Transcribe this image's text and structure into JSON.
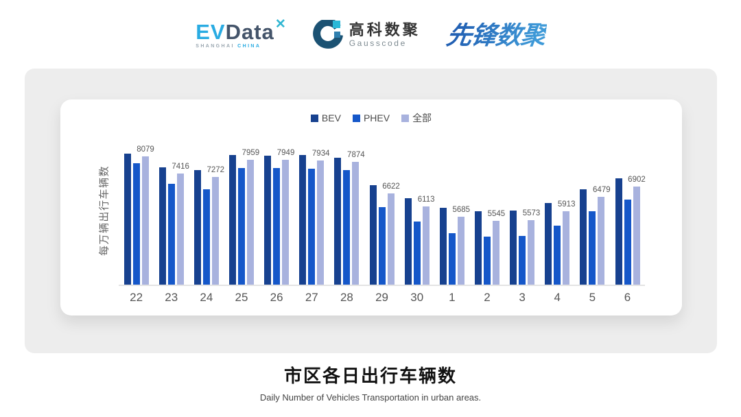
{
  "header": {
    "logo_evdata": {
      "ev": "EV",
      "data": "Data",
      "mark": "✕",
      "sub_grey": "SHANGHAI",
      "sub_blue": "CHINA"
    },
    "logo_gausscode": {
      "cn": "高科数聚",
      "en": "Gausscode"
    },
    "logo_pioneer": {
      "text": "先锋数聚"
    }
  },
  "chart_data": {
    "type": "bar",
    "title": "市区各日出行车辆数",
    "subtitle": "Daily Number of Vehicles Transportation in urban areas.",
    "ylabel": "每万辆出行车辆数",
    "categories": [
      "22",
      "23",
      "24",
      "25",
      "26",
      "27",
      "28",
      "29",
      "30",
      "1",
      "2",
      "3",
      "4",
      "5",
      "6"
    ],
    "series": [
      {
        "name": "BEV",
        "key": "bev",
        "color": "#17418f",
        "values": [
          8200,
          7660,
          7540,
          8150,
          8125,
          8145,
          8040,
          6940,
          6425,
          6055,
          5915,
          5940,
          6245,
          6775,
          7215
        ]
      },
      {
        "name": "PHEV",
        "key": "phev",
        "color": "#1557c9",
        "values": [
          7830,
          6990,
          6775,
          7630,
          7620,
          7600,
          7535,
          6080,
          5500,
          5035,
          4915,
          4925,
          5340,
          5910,
          6370
        ]
      },
      {
        "name": "全部",
        "key": "all",
        "color": "#a8b2de",
        "values": [
          8079,
          7416,
          7272,
          7959,
          7949,
          7934,
          7874,
          6622,
          6113,
          5685,
          5545,
          5573,
          5913,
          6479,
          6902
        ]
      }
    ],
    "data_labels_series": "全部",
    "data_labels": [
      8079,
      7416,
      7272,
      7959,
      7949,
      7934,
      7874,
      6622,
      6113,
      5685,
      5545,
      5573,
      5913,
      6479,
      6902
    ],
    "ylim": [
      3000,
      9100
    ],
    "grid": false,
    "legend_position": "top"
  }
}
